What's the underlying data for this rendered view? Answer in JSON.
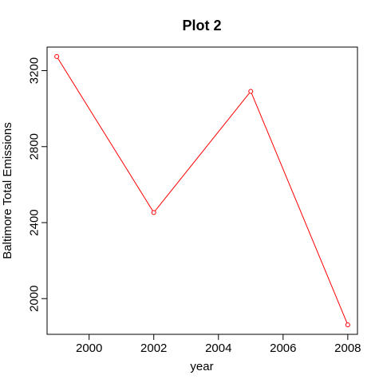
{
  "chart_data": {
    "type": "line",
    "title": "Plot 2",
    "xlabel": "year",
    "ylabel": "Baltimore Total Emissions",
    "x": [
      1999,
      2002,
      2005,
      2008
    ],
    "series": [
      {
        "values": [
          3274,
          2453,
          3091,
          1862
        ],
        "color": "#ff0000",
        "marker": "open-circle"
      }
    ],
    "xlim": [
      1998.7,
      2008.3
    ],
    "ylim": [
      1812,
      3324
    ],
    "xticks": [
      2000,
      2002,
      2004,
      2006,
      2008
    ],
    "yticks": [
      2000,
      2400,
      2800,
      3200
    ],
    "grid": false,
    "legend": "none"
  }
}
